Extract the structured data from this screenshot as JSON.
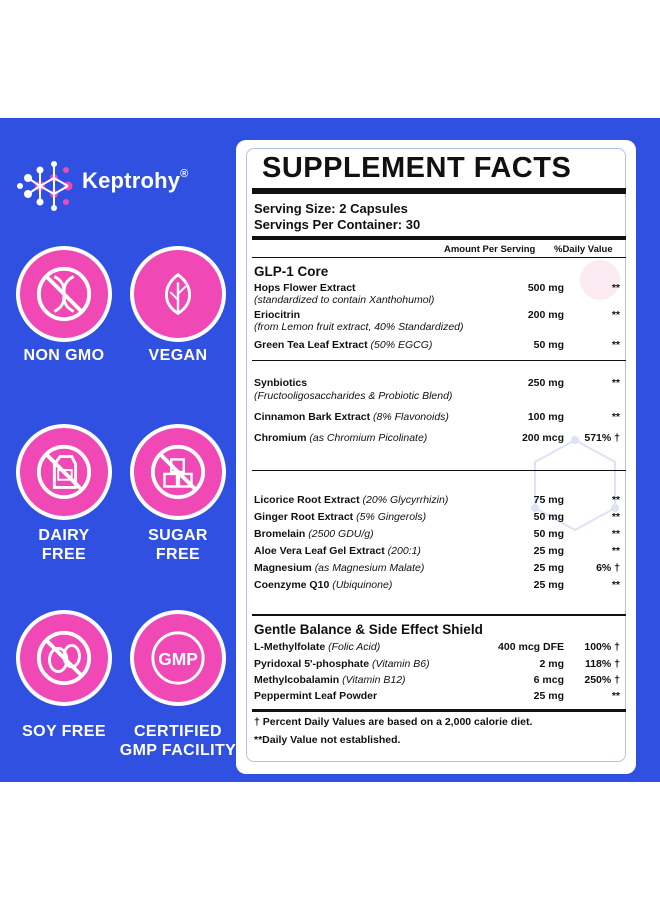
{
  "brand": {
    "name": "Keptrohy",
    "mark": "®"
  },
  "badges": [
    {
      "label": "NON GMO",
      "icon": "dna-crossed-icon"
    },
    {
      "label": "VEGAN",
      "icon": "leaf-icon"
    },
    {
      "label": "DAIRY\nFREE",
      "icon": "milk-carton-icon"
    },
    {
      "label": "SUGAR\nFREE",
      "icon": "sugar-cubes-icon"
    },
    {
      "label": "SOY FREE",
      "icon": "soybean-icon"
    },
    {
      "label": "CERTIFIED\nGMP FACILITY",
      "icon": "gmp-icon"
    }
  ],
  "facts": {
    "title": "SUPPLEMENT FACTS",
    "serving_size": "Serving Size: 2 Capsules",
    "servings_per_container": "Servings Per Container: 30",
    "col_amount": "Amount Per Serving",
    "col_dv": "%Daily Value",
    "sections": [
      {
        "title": "GLP-1 Core",
        "rows": [
          {
            "name": "Hops Flower Extract",
            "detail": "",
            "amount": "500 mg",
            "dv": "**",
            "sub": "(standardized to contain Xanthohumol)"
          },
          {
            "name": "Eriocitrin",
            "detail": "",
            "amount": "200 mg",
            "dv": "**",
            "sub": "(from Lemon fruit extract, 40% Standardized)"
          },
          {
            "name": "Green Tea Leaf Extract",
            "detail": "(50% EGCG)",
            "amount": "50 mg",
            "dv": "**",
            "sub": ""
          }
        ]
      },
      {
        "title": "",
        "rows": [
          {
            "name": "Synbiotics",
            "detail": "",
            "amount": "250 mg",
            "dv": "**",
            "sub": "(Fructooligosaccharides & Probiotic Blend)"
          },
          {
            "name": "Cinnamon Bark Extract",
            "detail": "(8% Flavonoids)",
            "amount": "100 mg",
            "dv": "**",
            "sub": ""
          },
          {
            "name": "Chromium",
            "detail": "(as Chromium Picolinate)",
            "amount": "200 mcg",
            "dv": "571% †",
            "sub": ""
          }
        ]
      },
      {
        "title": "",
        "rows": [
          {
            "name": "Licorice Root Extract",
            "detail": "(20% Glycyrrhizin)",
            "amount": "75 mg",
            "dv": "**",
            "sub": ""
          },
          {
            "name": "Ginger Root Extract",
            "detail": "(5% Gingerols)",
            "amount": "50 mg",
            "dv": "**",
            "sub": ""
          },
          {
            "name": "Bromelain",
            "detail": "(2500 GDU/g)",
            "amount": "50 mg",
            "dv": "**",
            "sub": ""
          },
          {
            "name": "Aloe Vera Leaf Gel Extract",
            "detail": "(200:1)",
            "amount": "25 mg",
            "dv": "**",
            "sub": ""
          },
          {
            "name": "Magnesium",
            "detail": "(as Magnesium Malate)",
            "amount": "25 mg",
            "dv": "6% †",
            "sub": ""
          },
          {
            "name": "Coenzyme Q10",
            "detail": "(Ubiquinone)",
            "amount": "25 mg",
            "dv": "**",
            "sub": ""
          }
        ]
      },
      {
        "title": "Gentle Balance & Side Effect Shield",
        "rows": [
          {
            "name": "L-Methylfolate",
            "detail": "(Folic Acid)",
            "amount": "400 mcg DFE",
            "dv": "100% †",
            "sub": ""
          },
          {
            "name": "Pyridoxal 5'-phosphate",
            "detail": "(Vitamin B6)",
            "amount": "2 mg",
            "dv": "118% †",
            "sub": ""
          },
          {
            "name": "Methylcobalamin",
            "detail": "(Vitamin B12)",
            "amount": "6 mcg",
            "dv": "250% †",
            "sub": ""
          },
          {
            "name": "Peppermint Leaf Powder",
            "detail": "",
            "amount": "25 mg",
            "dv": "**",
            "sub": ""
          }
        ]
      }
    ],
    "footnote1": "† Percent Daily Values are based on a 2,000 calorie diet.",
    "footnote2": "**Daily Value not established."
  },
  "colors": {
    "banner": "#2f50e0",
    "badge": "#f048b4",
    "accent": "#ff5fa8"
  }
}
